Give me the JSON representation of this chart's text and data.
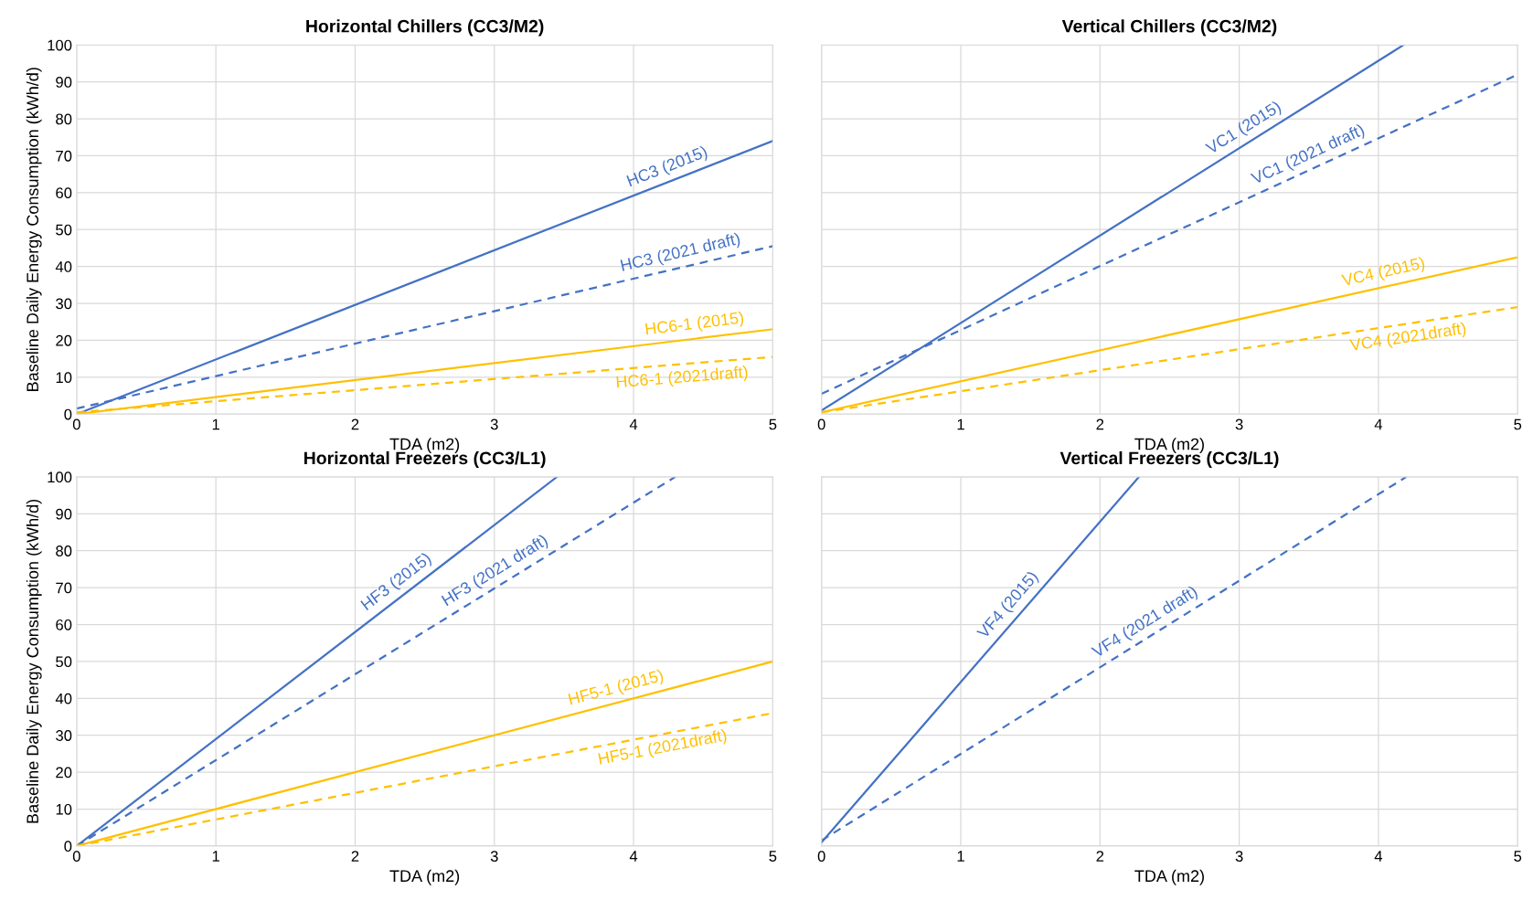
{
  "chart_data": [
    {
      "type": "line",
      "title": "Horizontal Chillers (CC3/M2)",
      "xlabel": "TDA (m2)",
      "ylabel": "Baseline Daily Energy Consumption (kWh/d)",
      "xlim": [
        0,
        5
      ],
      "xticks": [
        0,
        1,
        2,
        3,
        4,
        5
      ],
      "ylim": [
        0,
        100
      ],
      "yticks": [
        0,
        10,
        20,
        30,
        40,
        50,
        60,
        70,
        80,
        90,
        100
      ],
      "grid": true,
      "marker": "none",
      "series": [
        {
          "color": "#4472c4",
          "line_style": "solid",
          "x": [
            0,
            5
          ],
          "values": [
            0,
            74
          ]
        },
        {
          "color": "#4472c4",
          "line_style": "dashed",
          "x": [
            0,
            5
          ],
          "values": [
            1.5,
            45.5
          ]
        },
        {
          "color": "#ffc000",
          "line_style": "solid",
          "x": [
            0,
            5
          ],
          "values": [
            0,
            23
          ]
        },
        {
          "color": "#ffc000",
          "line_style": "dashed",
          "x": [
            0,
            5
          ],
          "values": [
            0.5,
            15.5
          ]
        }
      ],
      "annotations": [
        {
          "text": "HC3 (2015)",
          "x": 4.28,
          "y": 63.3
        },
        {
          "text": "HC3 (2021 draft)",
          "x": 4.36,
          "y": 39.9
        },
        {
          "text": "HC6-1 (2015)",
          "x": 4.45,
          "y": 20.5
        },
        {
          "text": "HC6-1 (2021draft)",
          "x": 4.34,
          "y": 13.5
        }
      ]
    },
    {
      "type": "line",
      "title": "Vertical Chillers (CC3/M2)",
      "xlabel": "TDA (m2)",
      "xlim": [
        0,
        5
      ],
      "xticks": [
        0,
        1,
        2,
        3,
        4,
        5
      ],
      "ylim": [
        0,
        100
      ],
      "yticks": [
        0,
        10,
        20,
        30,
        40,
        50,
        60,
        70,
        80,
        90,
        100
      ],
      "tick_labels": "x",
      "grid": true,
      "marker": "none",
      "series": [
        {
          "color": "#4472c4",
          "line_style": "solid",
          "x": [
            0,
            4.18
          ],
          "values": [
            1,
            100
          ]
        },
        {
          "color": "#4472c4",
          "line_style": "dashed",
          "x": [
            0,
            5
          ],
          "values": [
            5.5,
            92
          ]
        },
        {
          "color": "#ffc000",
          "line_style": "solid",
          "x": [
            0,
            5
          ],
          "values": [
            0.5,
            42.5
          ]
        },
        {
          "color": "#ffc000",
          "line_style": "dashed",
          "x": [
            0,
            5
          ],
          "values": [
            0.5,
            29
          ]
        }
      ],
      "annotations": [
        {
          "text": "VC1 (2015)",
          "x": 3.09,
          "y": 74.2
        },
        {
          "text": "VC1 (2021 draft)",
          "x": 3.54,
          "y": 66.7
        },
        {
          "text": "VC4 (2015)",
          "x": 4.06,
          "y": 34.6
        },
        {
          "text": "VC4 (2021draft)",
          "x": 4.2,
          "y": 24.4
        }
      ]
    },
    {
      "type": "line",
      "title": "Horizontal Freezers (CC3/L1)",
      "xlabel": "TDA (m2)",
      "ylabel": "Baseline Daily Energy Consumption (kWh/d)",
      "xlim": [
        0,
        5
      ],
      "xticks": [
        0,
        1,
        2,
        3,
        4,
        5
      ],
      "ylim": [
        0,
        100
      ],
      "yticks": [
        0,
        10,
        20,
        30,
        40,
        50,
        60,
        70,
        80,
        90,
        100
      ],
      "grid": true,
      "marker": "none",
      "series": [
        {
          "color": "#4472c4",
          "line_style": "solid",
          "x": [
            0,
            3.45
          ],
          "values": [
            0,
            100
          ]
        },
        {
          "color": "#4472c4",
          "line_style": "dashed",
          "x": [
            0,
            4.3
          ],
          "values": [
            0,
            100
          ]
        },
        {
          "color": "#ffc000",
          "line_style": "solid",
          "x": [
            0,
            5
          ],
          "values": [
            0,
            50
          ]
        },
        {
          "color": "#ffc000",
          "line_style": "dashed",
          "x": [
            0,
            5
          ],
          "values": [
            0,
            36
          ]
        }
      ],
      "annotations": [
        {
          "text": "HF3 (2015)",
          "x": 2.36,
          "y": 68.4
        },
        {
          "text": "HF3 (2021 draft)",
          "x": 3.06,
          "y": 71.2
        },
        {
          "text": "HF5-1 (2015)",
          "x": 3.9,
          "y": 39
        },
        {
          "text": "HF5-1 (2021draft)",
          "x": 4.19,
          "y": 30.2
        }
      ]
    },
    {
      "type": "line",
      "title": "Vertical Freezers (CC3/L1)",
      "xlabel": "TDA (m2)",
      "xlim": [
        0,
        5
      ],
      "xticks": [
        0,
        1,
        2,
        3,
        4,
        5
      ],
      "ylim": [
        0,
        100
      ],
      "yticks": [
        0,
        10,
        20,
        30,
        40,
        50,
        60,
        70,
        80,
        90,
        100
      ],
      "tick_labels": "x",
      "grid": true,
      "marker": "none",
      "series": [
        {
          "color": "#4472c4",
          "line_style": "solid",
          "x": [
            0,
            2.28
          ],
          "values": [
            1,
            100
          ]
        },
        {
          "color": "#4472c4",
          "line_style": "dashed",
          "x": [
            0,
            4.2
          ],
          "values": [
            1.5,
            100
          ]
        }
      ],
      "annotations": [
        {
          "text": "VF4 (2015)",
          "x": 1.42,
          "y": 62.7
        },
        {
          "text": "VF4 (2021 draft)",
          "x": 2.38,
          "y": 57.3
        }
      ]
    }
  ]
}
